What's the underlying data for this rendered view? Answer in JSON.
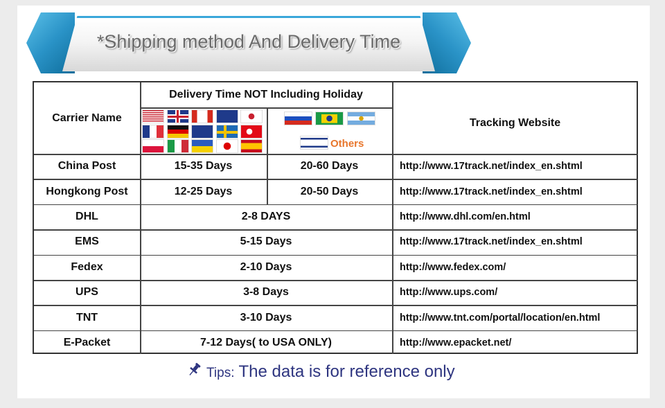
{
  "banner": {
    "title": "*Shipping method And Delivery Time"
  },
  "table": {
    "headers": {
      "carrier": "Carrier Name",
      "delivery": "Delivery Time NOT Including Holiday",
      "tracking": "Tracking Website"
    },
    "flags_group_1": [
      "USA",
      "UK",
      "Canada",
      "Australia",
      "South Korea",
      "France",
      "Germany",
      "New Zealand",
      "Sweden",
      "Turkey",
      "Poland",
      "Italy",
      "Ukraine",
      "Japan",
      "Spain"
    ],
    "flags_group_2": [
      "Russia",
      "Brazil",
      "Argentina",
      "Israel"
    ],
    "others_label": "Others",
    "rows": [
      {
        "carrier": "China Post",
        "time1": "15-35 Days",
        "time2": "20-60 Days",
        "url": "http://www.17track.net/index_en.shtml"
      },
      {
        "carrier": "Hongkong Post",
        "time1": "12-25 Days",
        "time2": "20-50 Days",
        "url": "http://www.17track.net/index_en.shtml"
      },
      {
        "carrier": "DHL",
        "time": "2-8 DAYS",
        "url": "http://www.dhl.com/en.html"
      },
      {
        "carrier": "EMS",
        "time": "5-15 Days",
        "url": "http://www.17track.net/index_en.shtml"
      },
      {
        "carrier": "Fedex",
        "time": "2-10 Days",
        "url": "http://www.fedex.com/"
      },
      {
        "carrier": "UPS",
        "time": "3-8 Days",
        "url": "http://www.ups.com/"
      },
      {
        "carrier": "TNT",
        "time": "3-10 Days",
        "url": "http://www.tnt.com/portal/location/en.html"
      },
      {
        "carrier": "E-Packet",
        "time": "7-12 Days( to USA ONLY)",
        "url": "http://www.epacket.net/"
      }
    ]
  },
  "tips": {
    "label": "Tips:",
    "text": "The data is for reference only",
    "icon": "pushpin-icon",
    "color": "#2e3580"
  }
}
